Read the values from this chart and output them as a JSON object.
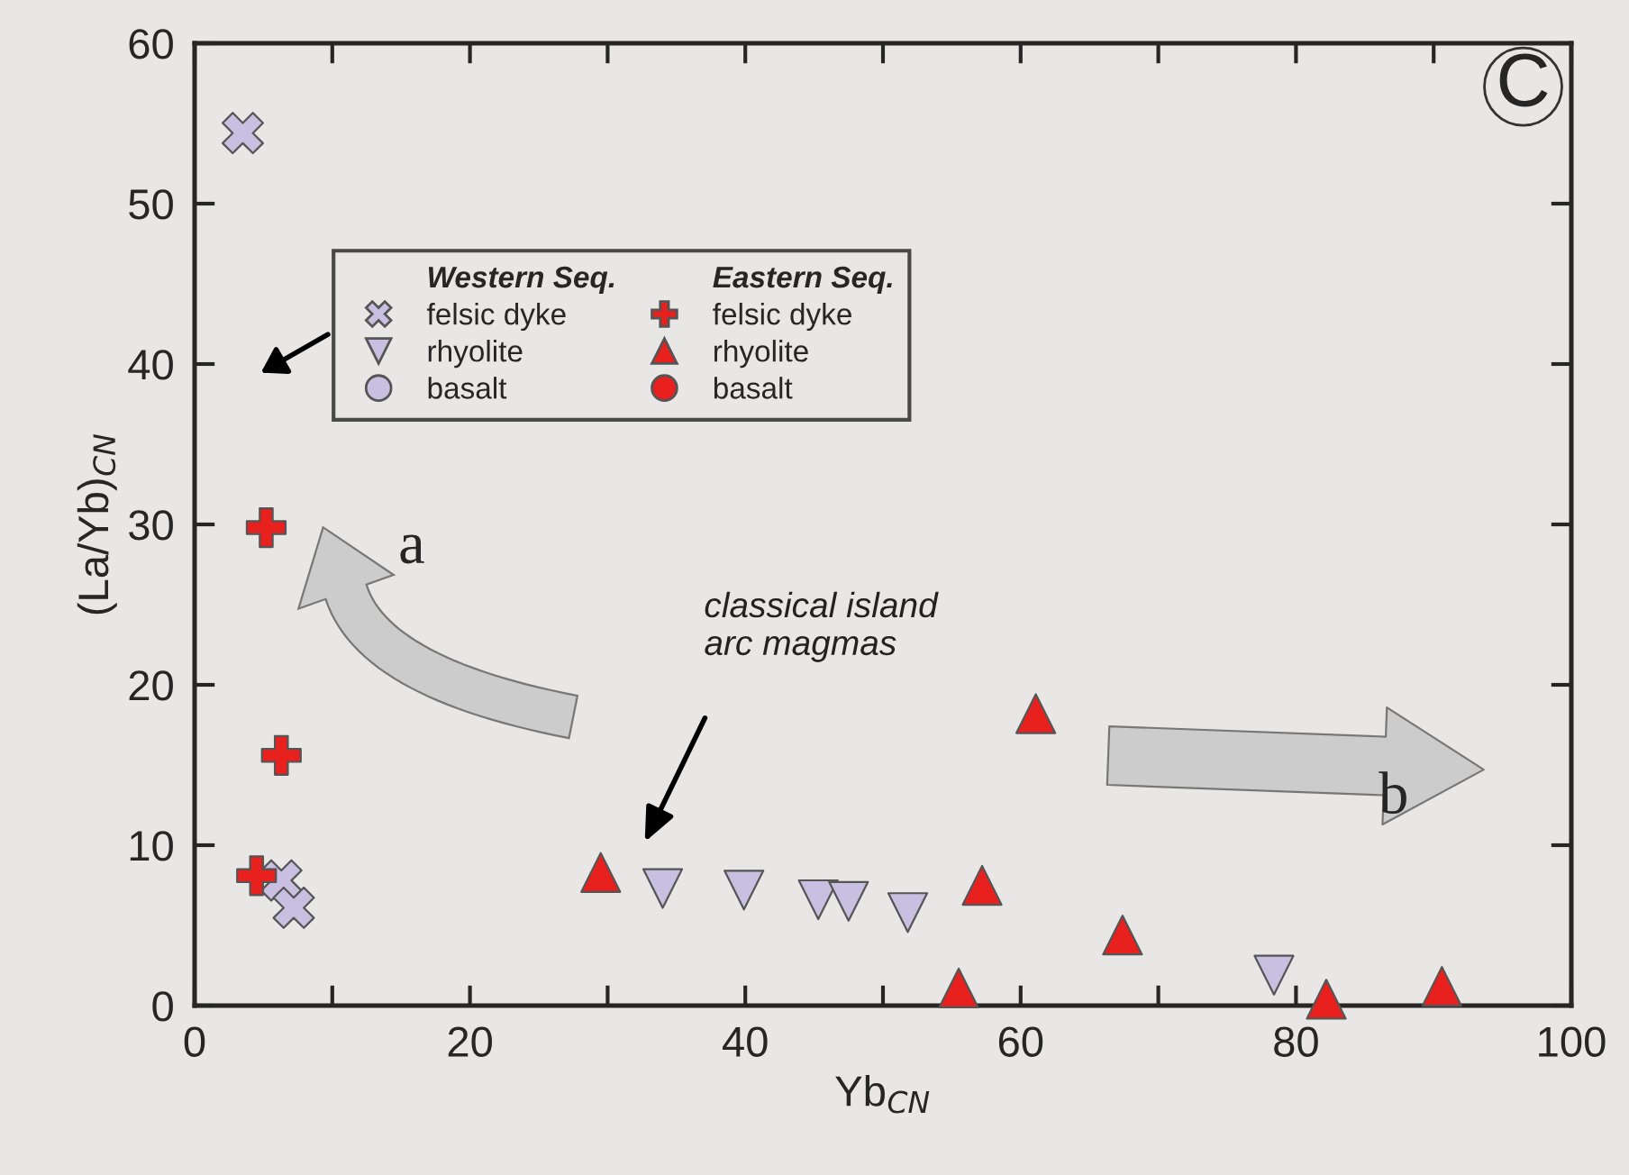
{
  "chart_data": {
    "type": "scatter",
    "xlabel": "Yb$_{CN}$",
    "ylabel": "(La/Yb)$_{CN}$",
    "xlim": [
      0,
      100
    ],
    "ylim": [
      0,
      60
    ],
    "xticks": [
      0,
      {
        "value": 10,
        "label": null
      },
      20,
      {
        "value": 30,
        "label": null
      },
      40,
      {
        "value": 50,
        "label": null
      },
      60,
      {
        "value": 70,
        "label": null
      },
      80,
      {
        "value": 90,
        "label": null
      },
      100
    ],
    "yticks": [
      0,
      10,
      20,
      30,
      40,
      50,
      60
    ],
    "grid": false,
    "legend": "top left",
    "annotations": [
      "Western Seq.",
      "Eastern Seq.",
      "classical island\narc magmas",
      "a",
      "b",
      "C"
    ],
    "series": [
      {
        "name": "felsic dyke",
        "color": "#c9bfe0",
        "marker": "x",
        "x": [
          3.5,
          6.3,
          7.2
        ],
        "values": [
          54.4,
          7.8,
          6.1
        ]
      },
      {
        "name": "rhyolite",
        "color": "#c9bfe0",
        "marker": "triangle_down",
        "x": [
          34.0,
          39.9,
          45.3,
          47.5,
          51.8,
          78.4
        ],
        "values": [
          7.3,
          7.2,
          6.6,
          6.5,
          5.8,
          1.9
        ]
      },
      {
        "name": "basalt",
        "color": "#c9bfe0",
        "marker": "circle"
      },
      {
        "name": "felsic dyke",
        "color": "#e8211e",
        "marker": "cross",
        "x": [
          5.2,
          6.3,
          4.5
        ],
        "values": [
          29.8,
          15.6,
          8.1
        ]
      },
      {
        "name": "rhyolite",
        "color": "#e8211e",
        "marker": "triangle",
        "x": [
          29.5,
          61.1,
          57.2,
          67.4,
          55.5,
          82.2,
          90.6
        ],
        "values": [
          8.3,
          18.2,
          7.5,
          4.4,
          1.1,
          0.4,
          1.2
        ]
      },
      {
        "name": "basalt",
        "color": "#e8211e",
        "marker": "circle"
      }
    ]
  }
}
